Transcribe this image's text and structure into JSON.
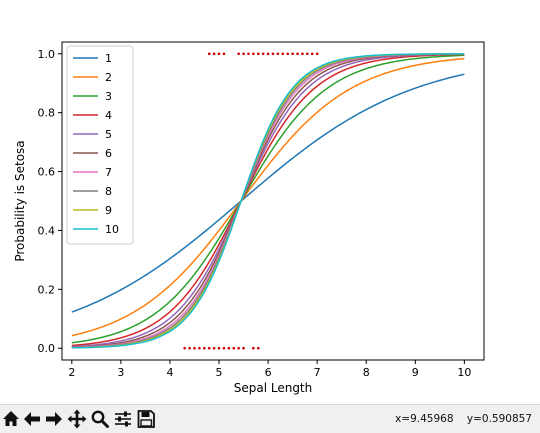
{
  "toolbar": {
    "buttons": [
      {
        "name": "home-icon",
        "label": "Home"
      },
      {
        "name": "back-arrow-icon",
        "label": "Back"
      },
      {
        "name": "forward-arrow-icon",
        "label": "Forward"
      },
      {
        "name": "pan-icon",
        "label": "Pan"
      },
      {
        "name": "zoom-icon",
        "label": "Zoom"
      },
      {
        "name": "configure-subplots-icon",
        "label": "Configure subplots"
      },
      {
        "name": "save-icon",
        "label": "Save"
      }
    ],
    "coords": {
      "x": "x=9.45968",
      "y": "y=0.590857"
    }
  },
  "chart_data": {
    "type": "line",
    "title": "",
    "xlabel": "Sepal Length",
    "ylabel": "Probability is Setosa",
    "xlim": [
      1.8,
      10.4
    ],
    "ylim": [
      -0.04,
      1.04
    ],
    "xticks": [
      "2",
      "3",
      "4",
      "5",
      "6",
      "7",
      "8",
      "9",
      "10"
    ],
    "yticks": [
      "0.0",
      "0.2",
      "0.4",
      "0.6",
      "0.8",
      "1.0"
    ],
    "grid": false,
    "legend": "top-left",
    "curve_model": "logistic",
    "crossover_x": 5.45,
    "series": [
      {
        "name": "1",
        "color": "#1f77b4",
        "slope": 0.57
      },
      {
        "name": "2",
        "color": "#ff7f0e",
        "slope": 0.9
      },
      {
        "name": "3",
        "color": "#2ca02c",
        "slope": 1.15
      },
      {
        "name": "4",
        "color": "#d62728",
        "slope": 1.35
      },
      {
        "name": "5",
        "color": "#9467bd",
        "slope": 1.5
      },
      {
        "name": "6",
        "color": "#8c564b",
        "slope": 1.62
      },
      {
        "name": "7",
        "color": "#e377c2",
        "slope": 1.72
      },
      {
        "name": "8",
        "color": "#7f7f7f",
        "slope": 1.8
      },
      {
        "name": "9",
        "color": "#bcbd22",
        "slope": 1.87
      },
      {
        "name": "10",
        "color": "#17becf",
        "slope": 1.93
      }
    ],
    "data_points": {
      "color": "#cc0000",
      "y1": [
        4.8,
        4.9,
        5.0,
        5.1,
        5.4,
        5.5,
        5.6,
        5.7,
        5.8,
        5.9,
        6.0,
        6.1,
        6.2,
        6.3,
        6.4,
        6.5,
        6.6,
        6.7,
        6.8,
        6.9,
        7.0
      ],
      "y0": [
        4.3,
        4.4,
        4.5,
        4.6,
        4.7,
        4.8,
        4.9,
        5.0,
        5.1,
        5.2,
        5.3,
        5.4,
        5.5,
        5.7,
        5.8
      ]
    }
  }
}
